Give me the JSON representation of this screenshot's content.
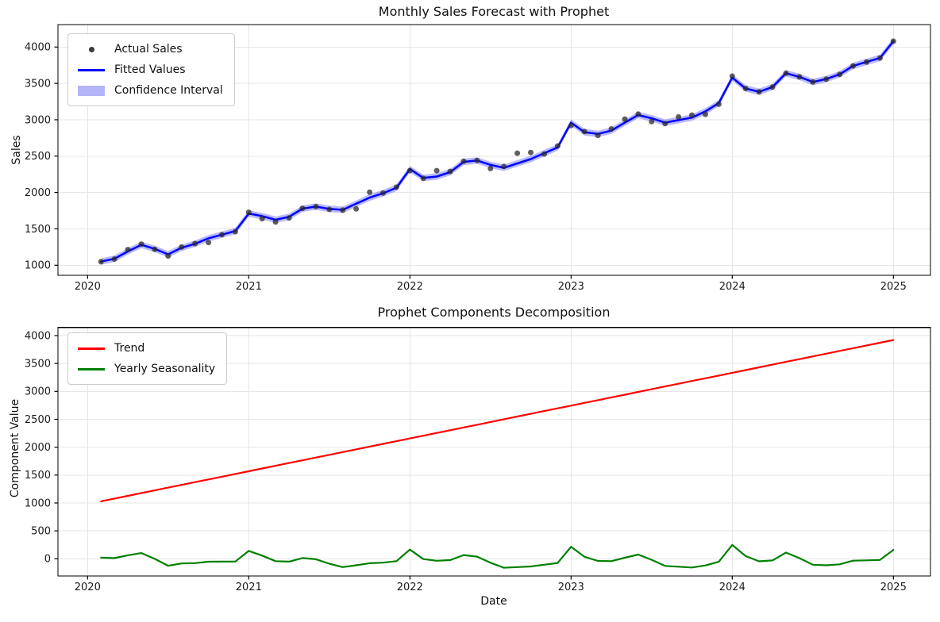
{
  "figure": {
    "background": "#ffffff"
  },
  "chart_data": [
    {
      "type": "line",
      "title": "Monthly Sales Forecast with Prophet",
      "xlabel": "",
      "ylabel": "Sales",
      "x_months": [
        "2020-01",
        "2020-02",
        "2020-03",
        "2020-04",
        "2020-05",
        "2020-06",
        "2020-07",
        "2020-08",
        "2020-09",
        "2020-10",
        "2020-11",
        "2020-12",
        "2021-01",
        "2021-02",
        "2021-03",
        "2021-04",
        "2021-05",
        "2021-06",
        "2021-07",
        "2021-08",
        "2021-09",
        "2021-10",
        "2021-11",
        "2021-12",
        "2022-01",
        "2022-02",
        "2022-03",
        "2022-04",
        "2022-05",
        "2022-06",
        "2022-07",
        "2022-08",
        "2022-09",
        "2022-10",
        "2022-11",
        "2022-12",
        "2023-01",
        "2023-02",
        "2023-03",
        "2023-04",
        "2023-05",
        "2023-06",
        "2023-07",
        "2023-08",
        "2023-09",
        "2023-10",
        "2023-11",
        "2023-12",
        "2024-01",
        "2024-02",
        "2024-03",
        "2024-04",
        "2024-05",
        "2024-06",
        "2024-07",
        "2024-08",
        "2024-09",
        "2024-10",
        "2024-11",
        "2024-12"
      ],
      "x_ticks": [
        2020,
        2021,
        2022,
        2023,
        2024,
        2025
      ],
      "y_ticks": [
        1000,
        1500,
        2000,
        2500,
        3000,
        3500,
        4000
      ],
      "ylim": [
        860,
        4310
      ],
      "xlim_years": [
        2019.82,
        2025.23
      ],
      "grid": true,
      "legend_position": "upper left",
      "series": [
        {
          "name": "Actual Sales",
          "type": "scatter",
          "color": "#2b2b2b",
          "opacity": 0.75,
          "values": [
            1048,
            1085,
            1215,
            1290,
            1218,
            1128,
            1250,
            1298,
            1312,
            1420,
            1462,
            1728,
            1640,
            1595,
            1650,
            1782,
            1805,
            1768,
            1757,
            1775,
            2004,
            1993,
            2073,
            2300,
            2195,
            2300,
            2290,
            2430,
            2440,
            2330,
            2358,
            2540,
            2550,
            2529,
            2640,
            2920,
            2838,
            2786,
            2874,
            3010,
            3078,
            2975,
            2947,
            3039,
            3064,
            3075,
            3213,
            3600,
            3431,
            3385,
            3449,
            3640,
            3590,
            3520,
            3558,
            3624,
            3740,
            3795,
            3850,
            4080
          ]
        },
        {
          "name": "Fitted Values",
          "type": "line",
          "color": "#0000ff",
          "width": 2.5,
          "values": [
            1050,
            1090,
            1190,
            1280,
            1225,
            1150,
            1240,
            1295,
            1370,
            1420,
            1470,
            1710,
            1675,
            1625,
            1665,
            1778,
            1806,
            1775,
            1762,
            1845,
            1930,
            1990,
            2066,
            2322,
            2200,
            2220,
            2280,
            2420,
            2440,
            2380,
            2340,
            2400,
            2460,
            2540,
            2620,
            2960,
            2830,
            2805,
            2850,
            2960,
            3065,
            3020,
            2960,
            2995,
            3030,
            3115,
            3230,
            3580,
            3430,
            3385,
            3450,
            3640,
            3590,
            3520,
            3560,
            3625,
            3740,
            3795,
            3850,
            4080
          ]
        },
        {
          "name": "Confidence Interval",
          "type": "band",
          "base_series": "Fitted Values",
          "color": "#0000ff",
          "opacity": 0.27,
          "halfwidth": 45
        }
      ],
      "legend": [
        {
          "label": "Actual Sales",
          "swatch": "dot",
          "color": "#3a3a3a"
        },
        {
          "label": "Fitted Values",
          "swatch": "line",
          "color": "#0000ff"
        },
        {
          "label": "Confidence Interval",
          "swatch": "patch",
          "color": "#b4b4f8"
        }
      ]
    },
    {
      "type": "line",
      "title": "Prophet Components Decomposition",
      "xlabel": "Date",
      "ylabel": "Component Value",
      "x_ticks": [
        2020,
        2021,
        2022,
        2023,
        2024,
        2025
      ],
      "y_ticks": [
        0,
        500,
        1000,
        1500,
        2000,
        2500,
        3000,
        3500,
        4000
      ],
      "ylim": [
        -310,
        4150
      ],
      "xlim_years": [
        2019.82,
        2025.23
      ],
      "grid": true,
      "legend_position": "upper left",
      "series": [
        {
          "name": "Trend",
          "type": "line",
          "color": "#ff0000",
          "width": 2.2,
          "values": [
            1030,
            1079,
            1128,
            1177,
            1226,
            1275,
            1324,
            1373,
            1422,
            1471,
            1520,
            1569,
            1618,
            1667,
            1716,
            1765,
            1814,
            1863,
            1912,
            1961,
            2010,
            2059,
            2108,
            2157,
            2206,
            2255,
            2304,
            2353,
            2402,
            2451,
            2500,
            2549,
            2598,
            2647,
            2696,
            2745,
            2794,
            2843,
            2892,
            2941,
            2990,
            3039,
            3088,
            3137,
            3186,
            3235,
            3284,
            3333,
            3382,
            3431,
            3480,
            3529,
            3578,
            3627,
            3676,
            3725,
            3774,
            3823,
            3872,
            3921
          ]
        },
        {
          "name": "Yearly Seasonality",
          "type": "line",
          "color": "#008000",
          "width": 2.2,
          "values": [
            20,
            11,
            62,
            103,
            -1,
            -125,
            -84,
            -78,
            -52,
            -51,
            -50,
            141,
            57,
            -42,
            -51,
            13,
            -8,
            -88,
            -150,
            -116,
            -80,
            -69,
            -42,
            165,
            -6,
            -35,
            -24,
            67,
            38,
            -71,
            -160,
            -149,
            -138,
            -107,
            -76,
            215,
            36,
            -38,
            -42,
            19,
            75,
            -19,
            -128,
            -142,
            -156,
            -120,
            -54,
            247,
            48,
            -46,
            -30,
            111,
            12,
            -107,
            -116,
            -100,
            -34,
            -28,
            -22,
            159
          ]
        }
      ],
      "legend": [
        {
          "label": "Trend",
          "swatch": "line",
          "color": "#ff0000"
        },
        {
          "label": "Yearly Seasonality",
          "swatch": "line",
          "color": "#008000"
        }
      ]
    }
  ]
}
